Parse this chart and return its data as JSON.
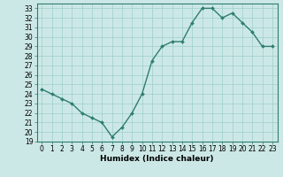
{
  "x": [
    0,
    1,
    2,
    3,
    4,
    5,
    6,
    7,
    8,
    9,
    10,
    11,
    12,
    13,
    14,
    15,
    16,
    17,
    18,
    19,
    20,
    21,
    22,
    23
  ],
  "y": [
    24.5,
    24.0,
    23.5,
    23.0,
    22.0,
    21.5,
    21.0,
    19.5,
    20.5,
    22.0,
    24.0,
    27.5,
    29.0,
    29.5,
    29.5,
    31.5,
    33.0,
    33.0,
    32.0,
    32.5,
    31.5,
    30.5,
    29.0,
    29.0
  ],
  "line_color": "#2e7d6e",
  "marker": "D",
  "marker_size": 2.0,
  "line_width": 1.0,
  "bg_color": "#cce8e6",
  "grid_color": "#9ecfcc",
  "xlabel": "Humidex (Indice chaleur)",
  "ylim": [
    19,
    33.5
  ],
  "yticks": [
    19,
    20,
    21,
    22,
    23,
    24,
    25,
    26,
    27,
    28,
    29,
    30,
    31,
    32,
    33
  ],
  "xlim": [
    -0.5,
    23.5
  ],
  "xticks": [
    0,
    1,
    2,
    3,
    4,
    5,
    6,
    7,
    8,
    9,
    10,
    11,
    12,
    13,
    14,
    15,
    16,
    17,
    18,
    19,
    20,
    21,
    22,
    23
  ],
  "tick_fontsize": 5.5,
  "label_fontsize": 6.5
}
